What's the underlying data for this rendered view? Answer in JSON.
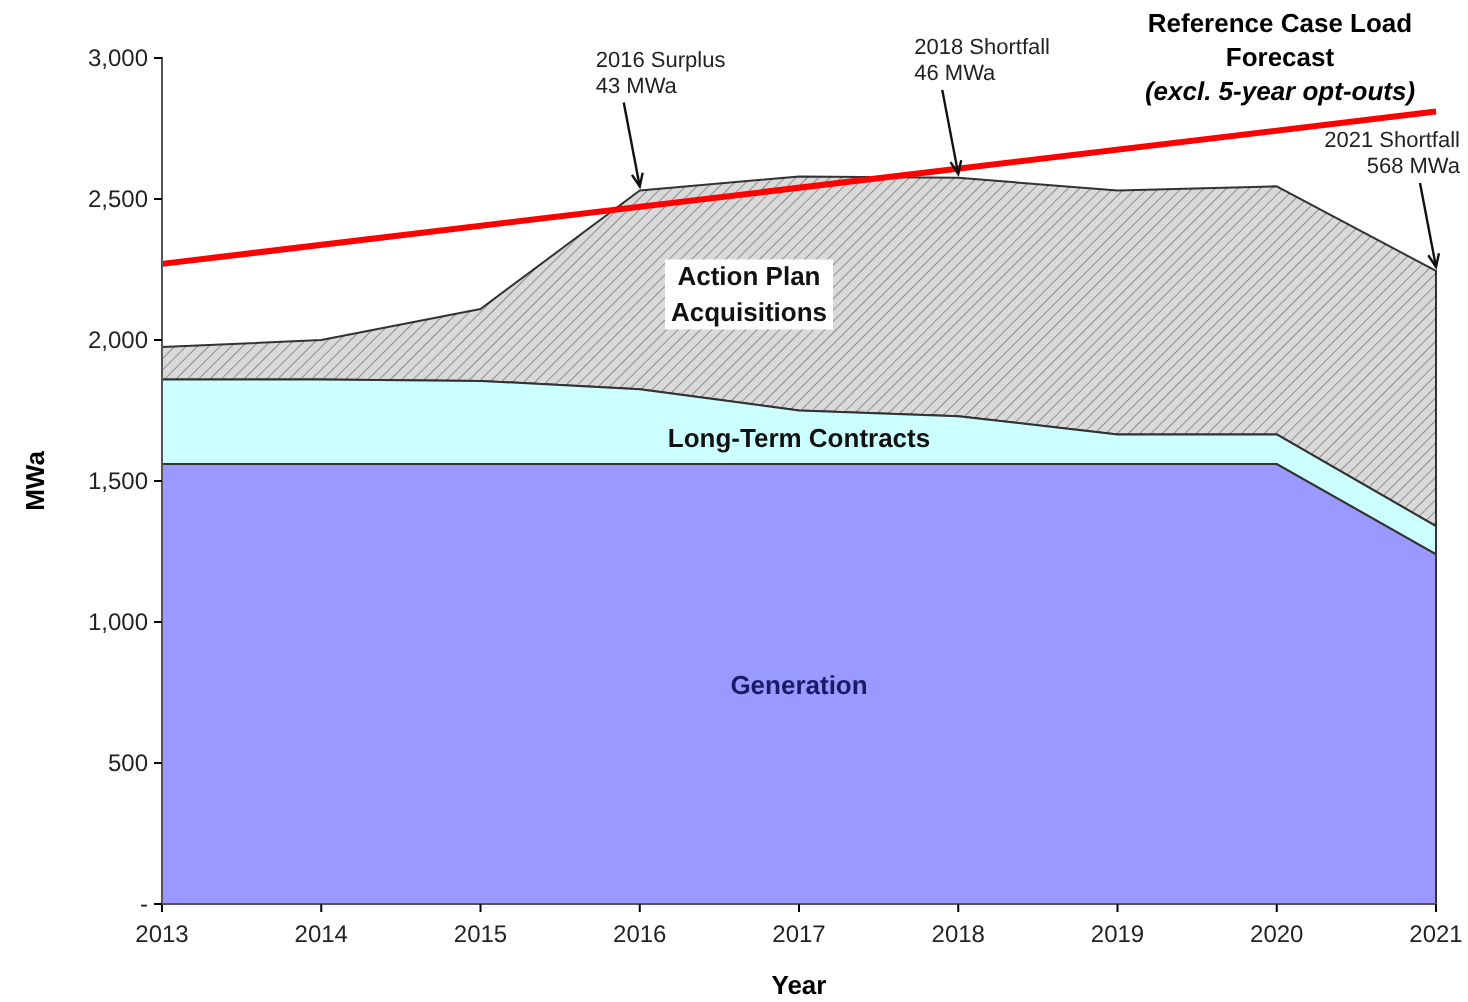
{
  "chart_data": {
    "type": "area",
    "stacked": true,
    "xlabel": "Year",
    "ylabel": "MWa",
    "x": [
      2013,
      2014,
      2015,
      2016,
      2017,
      2018,
      2019,
      2020,
      2021
    ],
    "xlim": [
      2013,
      2021
    ],
    "xticks": [
      2013,
      2014,
      2015,
      2016,
      2017,
      2018,
      2019,
      2020,
      2021
    ],
    "ylim": [
      0,
      3000
    ],
    "yticks": [
      {
        "value": 0,
        "label": "-"
      },
      {
        "value": 500,
        "label": "500"
      },
      {
        "value": 1000,
        "label": "1,000"
      },
      {
        "value": 1500,
        "label": "1,500"
      },
      {
        "value": 2000,
        "label": "2,000"
      },
      {
        "value": 2500,
        "label": "2,500"
      },
      {
        "value": 3000,
        "label": "3,000"
      }
    ],
    "series": [
      {
        "name": "Generation",
        "color": "#9999ff",
        "values": [
          1560,
          1560,
          1560,
          1560,
          1560,
          1560,
          1560,
          1560,
          1240
        ]
      },
      {
        "name": "Long-Term Contracts",
        "color": "#ccffff",
        "values": [
          300,
          300,
          295,
          265,
          190,
          170,
          105,
          105,
          100
        ]
      },
      {
        "name": "Action Plan Acquisitions",
        "color": "#d9d9d9",
        "values": [
          115,
          140,
          255,
          705,
          830,
          845,
          865,
          880,
          905
        ]
      },
      {
        "name": "Reference Case Load Forecast",
        "type": "line",
        "color": "#ff0000",
        "x": [
          2013,
          2021
        ],
        "values": [
          2270,
          2810
        ]
      }
    ],
    "annotations": [
      "(excl. 5-year opt-outs)",
      {
        "text": "2016 Surplus\n43 MWa",
        "x": 2016,
        "y": 2530
      },
      {
        "text": "2018 Shortfall\n46 MWa",
        "x": 2018,
        "y": 2575
      },
      {
        "text": "2021 Shortfall\n568 MWa",
        "x": 2021,
        "y": 2245
      }
    ]
  }
}
